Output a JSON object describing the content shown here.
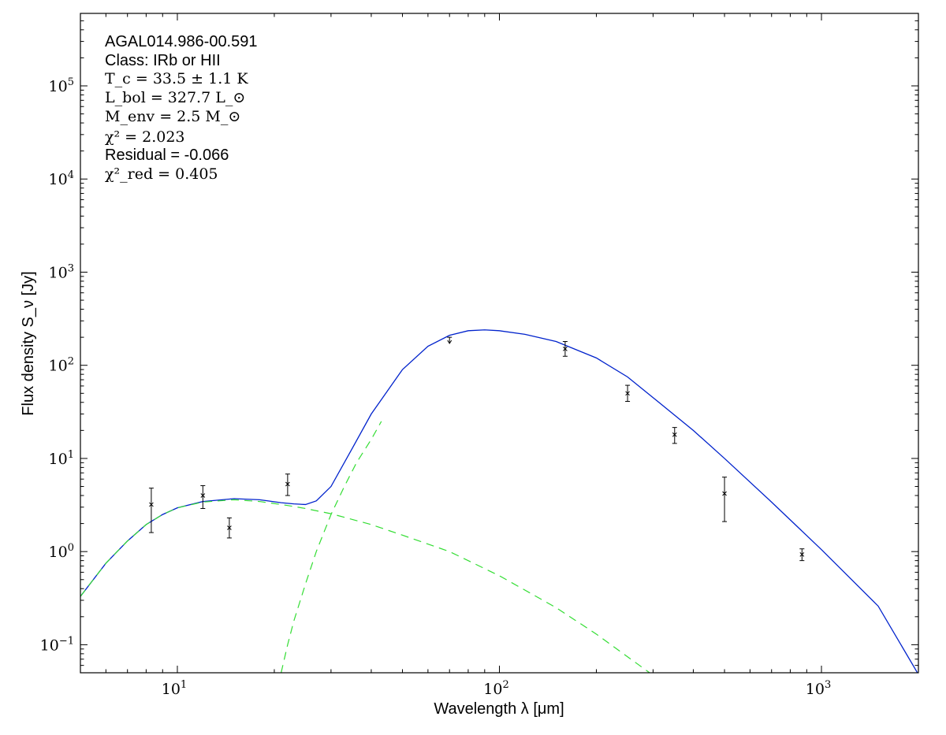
{
  "chart_data": {
    "type": "line",
    "xscale": "log",
    "yscale": "log",
    "xlim": [
      5,
      2000
    ],
    "ylim": [
      0.05,
      600000
    ],
    "xlabel": "Wavelength λ [μm]",
    "ylabel": "Flux density S_ν [Jy]",
    "x_tick_labels": [
      {
        "value": 10,
        "base": "10",
        "exp": "1"
      },
      {
        "value": 100,
        "base": "10",
        "exp": "2"
      },
      {
        "value": 1000,
        "base": "10",
        "exp": "3"
      }
    ],
    "y_tick_labels": [
      {
        "value": 0.1,
        "base": "10",
        "exp": "−1"
      },
      {
        "value": 1,
        "base": "10",
        "exp": "0"
      },
      {
        "value": 10,
        "base": "10",
        "exp": "1"
      },
      {
        "value": 100,
        "base": "10",
        "exp": "2"
      },
      {
        "value": 1000,
        "base": "10",
        "exp": "3"
      },
      {
        "value": 10000,
        "base": "10",
        "exp": "4"
      },
      {
        "value": 100000,
        "base": "10",
        "exp": "5"
      }
    ],
    "annotations": {
      "source": "AGAL014.986-00.591",
      "class": "Class: IRb or HII",
      "tc": "T_c = 33.5 ± 1.1 K",
      "lbol": "L_bol = 327.7 L_⊙",
      "menv": "M_env = 2.5 M_⊙",
      "chi2": "χ² = 2.023",
      "residual": "Residual = -0.066",
      "chi2red": "χ²_red = 0.405"
    },
    "colors": {
      "total_fit": "#0022cc",
      "components": "#33dd33",
      "data": "#000000"
    },
    "series": [
      {
        "style": "solid",
        "x": [
          5,
          6,
          7,
          8,
          9,
          10,
          12,
          15,
          18,
          21,
          23,
          25,
          27,
          30,
          35,
          40,
          50,
          60,
          70,
          80,
          90,
          100,
          120,
          150,
          200,
          250,
          300,
          400,
          500,
          700,
          1000,
          1500,
          2000
        ],
        "y": [
          0.33,
          0.75,
          1.3,
          1.95,
          2.5,
          2.95,
          3.45,
          3.7,
          3.6,
          3.35,
          3.25,
          3.2,
          3.5,
          5.0,
          13,
          30,
          90,
          160,
          210,
          235,
          240,
          235,
          215,
          180,
          120,
          75,
          45,
          20,
          10,
          3.4,
          1.05,
          0.26,
          0.048
        ]
      },
      {
        "style": "dashed",
        "x": [
          5,
          6,
          7,
          8,
          9,
          10,
          12,
          15,
          18,
          21,
          23,
          25,
          30,
          40,
          50,
          70,
          100,
          150,
          200,
          300
        ],
        "y": [
          0.33,
          0.75,
          1.3,
          1.95,
          2.5,
          2.95,
          3.4,
          3.6,
          3.45,
          3.2,
          3.05,
          2.9,
          2.55,
          1.95,
          1.5,
          1.0,
          0.55,
          0.25,
          0.13,
          0.047
        ]
      },
      {
        "style": "dashed",
        "x": [
          21,
          22,
          23,
          25,
          27,
          30,
          33,
          36,
          40,
          43
        ],
        "y": [
          0.05,
          0.1,
          0.18,
          0.45,
          1.0,
          2.5,
          5.0,
          9.0,
          16,
          25
        ]
      }
    ],
    "points": [
      {
        "x": 8.3,
        "y": 3.2,
        "lo": 1.6,
        "hi": 4.8
      },
      {
        "x": 12,
        "y": 4.0,
        "lo": 2.9,
        "hi": 5.1
      },
      {
        "x": 14.5,
        "y": 1.8,
        "lo": 1.4,
        "hi": 2.3
      },
      {
        "x": 22,
        "y": 5.3,
        "lo": 4.0,
        "hi": 6.8
      },
      {
        "x": 70,
        "y": 175,
        "lo": 175,
        "hi": 200,
        "upper_limit": true
      },
      {
        "x": 160,
        "y": 150,
        "lo": 125,
        "hi": 180
      },
      {
        "x": 250,
        "y": 50,
        "lo": 41,
        "hi": 61
      },
      {
        "x": 350,
        "y": 18,
        "lo": 14.5,
        "hi": 21.5
      },
      {
        "x": 500,
        "y": 4.2,
        "lo": 2.1,
        "hi": 6.3
      },
      {
        "x": 870,
        "y": 0.93,
        "lo": 0.8,
        "hi": 1.07
      }
    ]
  }
}
